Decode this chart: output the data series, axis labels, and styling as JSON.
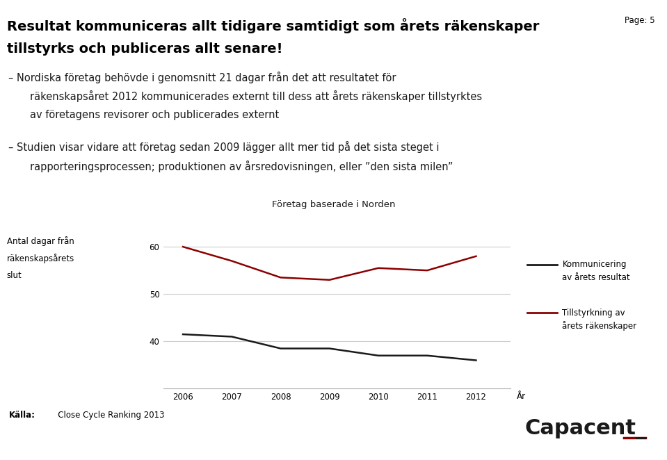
{
  "title_line1": "Resultat kommuniceras allt tidigare samtidigt som årets räkenskaper",
  "title_line2": "tillstyrks och publiceras allt senare!",
  "page_label": "Page: 5",
  "body_text_blocks": [
    {
      "lines": [
        {
          "text": "– Nordiska företag behövde i genomsnitt 21 dagar från det att resultatet för",
          "indent": false
        },
        {
          "text": "räkenskapsåret 2012 kommunicerades externt till dess att årets räkenskaper tillstyrktes",
          "indent": true
        },
        {
          "text": "av företagens revisorer och publicerades externt",
          "indent": true
        }
      ]
    },
    {
      "lines": [
        {
          "text": "– Studien visar vidare att företag sedan 2009 lägger allt mer tid på det sista steget i",
          "indent": false
        },
        {
          "text": "rapporteringsprocessen; produktionen av årsredovisningen, eller ”den sista milen”",
          "indent": true
        }
      ]
    }
  ],
  "chart_title": "Företag baserade i Norden",
  "ylabel_line1": "Antal dagar från",
  "ylabel_line2": "räkenskapsårets",
  "ylabel_line3": "slut",
  "ylabel_tick": "60",
  "xlabel": "År",
  "years": [
    2006,
    2007,
    2008,
    2009,
    2010,
    2011,
    2012
  ],
  "kommunicering": [
    41.5,
    41.0,
    38.5,
    38.5,
    37.0,
    37.0,
    36.0
  ],
  "tillstyrkning": [
    60.0,
    57.0,
    53.5,
    53.0,
    55.5,
    55.0,
    58.0
  ],
  "kommunicering_color": "#1a1a1a",
  "tillstyrkning_color": "#8B0000",
  "ylim_min": 30,
  "ylim_max": 65,
  "yticks": [
    40,
    50,
    60
  ],
  "legend_kommunicering_line1": "Kommunicering",
  "legend_kommunicering_line2": "av årets resultat",
  "legend_tillstyrkning_line1": "Tillstyrkning av",
  "legend_tillstyrkning_line2": "årets räkenskaper",
  "source_label": "Källa:",
  "source_text": "   Close Cycle Ranking 2013",
  "capacent_text": "Capacent_",
  "background_color": "#ffffff",
  "grid_color": "#cccccc",
  "header_bar_color": "#1a1a1a",
  "title_fontsize": 14,
  "body_fontsize": 10.5
}
